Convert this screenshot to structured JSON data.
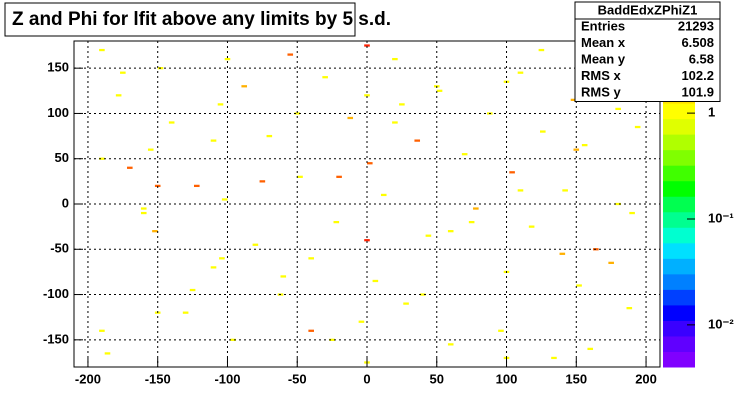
{
  "chart_data": {
    "type": "heatmap",
    "title": "Z and Phi for lfit above any limits by 5 s.d.",
    "x": [
      -190,
      -186,
      -178,
      -170,
      -160,
      -155,
      -152,
      -148,
      -140,
      -130,
      -122,
      -110,
      -105,
      -102,
      -96,
      -88,
      -80,
      -70,
      -62,
      -55,
      -48,
      -40,
      -30,
      -22,
      -12,
      -4,
      0,
      2,
      6,
      12,
      20,
      28,
      36,
      44,
      52,
      60,
      70,
      78,
      88,
      96,
      100,
      104,
      110,
      118,
      126,
      134,
      142,
      148,
      152,
      156,
      164,
      172,
      180,
      188,
      194,
      -190,
      -150,
      -104,
      -50,
      0,
      50,
      100,
      150,
      190,
      -175,
      -125,
      -75,
      -25,
      25,
      75,
      125,
      175,
      -190,
      -150,
      -100,
      -60,
      -20,
      0,
      20,
      60,
      100,
      140,
      180,
      -160,
      -110,
      -40,
      0,
      40,
      110,
      160
    ],
    "y": [
      170,
      -165,
      120,
      40,
      -10,
      60,
      -30,
      150,
      90,
      -120,
      20,
      -70,
      110,
      5,
      -150,
      130,
      -45,
      75,
      -100,
      165,
      30,
      -60,
      140,
      -20,
      95,
      -130,
      175,
      45,
      -85,
      10,
      160,
      -110,
      70,
      -35,
      125,
      -155,
      55,
      -5,
      100,
      -140,
      -75,
      35,
      145,
      -25,
      80,
      -170,
      15,
      115,
      -90,
      65,
      -50,
      150,
      0,
      -115,
      85,
      -140,
      20,
      -60,
      100,
      -40,
      130,
      -170,
      60,
      -10,
      145,
      -95,
      25,
      -150,
      110,
      -20,
      170,
      -65,
      50,
      -120,
      160,
      -80,
      30,
      -175,
      90,
      -30,
      135,
      -55,
      105,
      -5,
      70,
      -140,
      120,
      -100,
      15,
      -160
    ],
    "z": [
      1,
      1,
      1,
      3,
      1,
      1,
      2,
      1,
      1,
      1,
      3,
      1,
      1,
      1,
      1,
      2,
      1,
      1,
      1,
      3,
      1,
      1,
      1,
      1,
      2,
      1,
      4,
      3,
      1,
      1,
      1,
      1,
      3,
      1,
      1,
      1,
      1,
      2,
      1,
      1,
      1,
      3,
      1,
      1,
      1,
      1,
      1,
      2,
      1,
      1,
      3,
      1,
      1,
      1,
      1,
      1,
      3,
      1,
      1,
      4,
      1,
      1,
      2,
      1,
      1,
      1,
      3,
      1,
      1,
      1,
      1,
      2,
      1,
      1,
      1,
      1,
      3,
      1,
      1,
      1,
      1,
      2,
      1,
      1,
      1,
      3,
      1,
      1,
      1,
      1
    ],
    "xlim": [
      -210,
      210
    ],
    "ylim": [
      -180,
      180
    ],
    "xticks": [
      -200,
      -150,
      -100,
      -50,
      0,
      50,
      100,
      150,
      200
    ],
    "yticks": [
      -150,
      -100,
      -50,
      0,
      50,
      100,
      150
    ],
    "zlim": [
      0.004,
      4.8
    ],
    "zlog": true,
    "zticks": [
      {
        "value": 0.01,
        "label": "10⁻²"
      },
      {
        "value": 0.1,
        "label": "10⁻¹"
      },
      1
    ],
    "grid": true,
    "stats": {
      "title": "BaddEdxZPhiZ1",
      "rows": [
        {
          "label": "Entries",
          "value": 21293
        },
        {
          "label": "Mean x",
          "value": 6.508
        },
        {
          "label": "Mean y",
          "value": 6.58
        },
        {
          "label": "RMS x",
          "value": 102.2
        },
        {
          "label": "RMS y",
          "value": 101.9
        }
      ]
    }
  }
}
